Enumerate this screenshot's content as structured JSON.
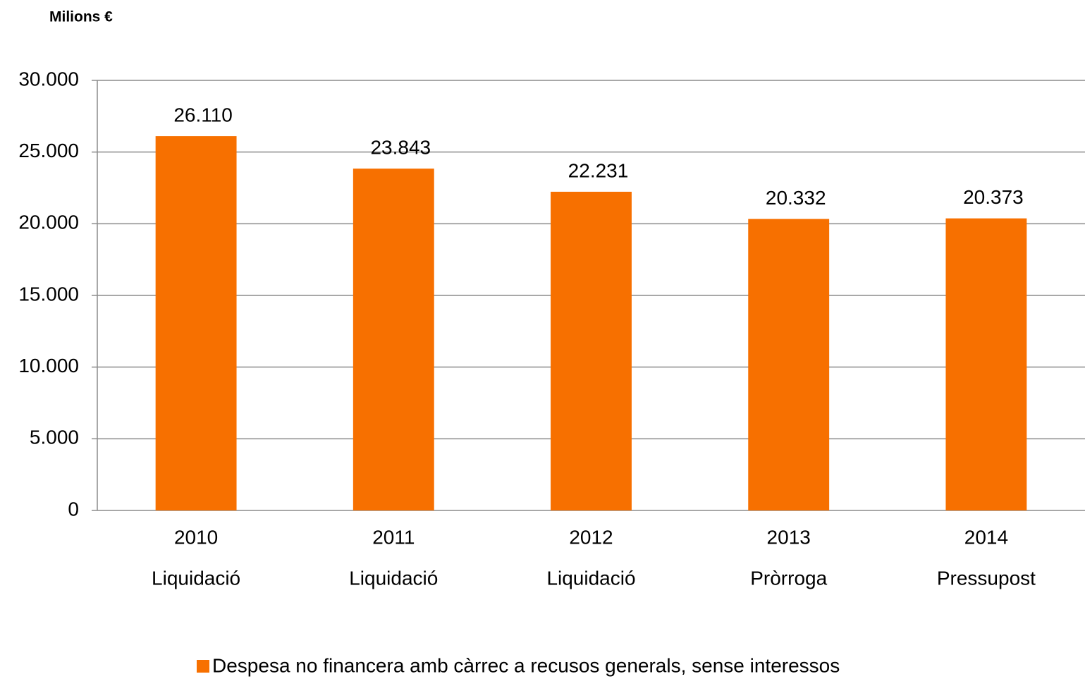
{
  "chart_data": {
    "type": "bar",
    "y_axis_label": "Milions €",
    "categories": [
      [
        "2010",
        "Liquidació"
      ],
      [
        "2011",
        "Liquidació"
      ],
      [
        "2012",
        "Liquidació"
      ],
      [
        "2013",
        "Pròrroga"
      ],
      [
        "2014",
        "Pressupost"
      ]
    ],
    "series": [
      {
        "name": "Despesa no financera amb càrrec a recusos generals, sense interessos",
        "color": "#f77000",
        "values": [
          26110,
          23843,
          22231,
          20332,
          20373
        ],
        "value_labels": [
          "26.110",
          "23.843",
          "22.231",
          "20.332",
          "20.373"
        ]
      }
    ],
    "ylim": [
      0,
      30000
    ],
    "yticks": [
      0,
      {
        "value": 5000,
        "label": "5.000"
      },
      {
        "value": 10000,
        "label": "10.000"
      },
      {
        "value": 15000,
        "label": "15.000"
      },
      {
        "value": 20000,
        "label": "20.000"
      },
      {
        "value": 25000,
        "label": "25.000"
      },
      {
        "value": 30000,
        "label": "30.000"
      }
    ],
    "grid": true,
    "legend": "bottom"
  }
}
